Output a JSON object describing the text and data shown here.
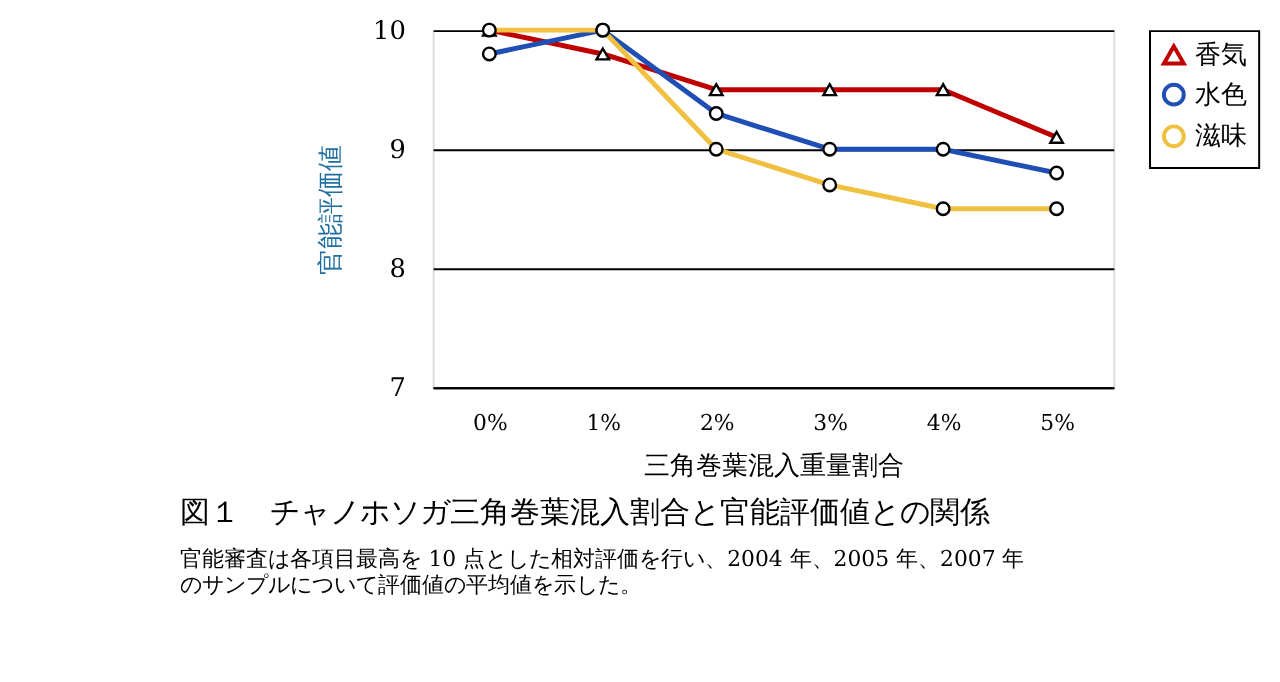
{
  "chart_data": {
    "type": "line",
    "title": "図１　チャノホソガ三角巻葉混入割合と官能評価値との関係",
    "annotations": [
      "官能審査は各項目最高を 10 点とした相対評価を行い、2004 年、2005 年、2007 年",
      "のサンプルについて評価値の平均値を示した。"
    ],
    "xlabel": "三角巻葉混入重量割合",
    "ylabel": "官能評価値",
    "categories": [
      "0%",
      "1%",
      "2%",
      "3%",
      "4%",
      "5%"
    ],
    "series": [
      {
        "name": "香気",
        "color": "#c00000",
        "marker": "triangle",
        "values": [
          10,
          9.8,
          9.5,
          9.5,
          9.5,
          9.1
        ]
      },
      {
        "name": "水色",
        "color": "#1f4fb4",
        "marker": "circle",
        "values": [
          9.8,
          10,
          9.3,
          9.0,
          9.0,
          8.8
        ]
      },
      {
        "name": "滋味",
        "color": "#f0c040",
        "marker": "circle",
        "values": [
          10,
          10,
          9.0,
          8.7,
          8.5,
          8.5
        ]
      }
    ],
    "ylim": [
      7,
      10
    ],
    "yticks": [
      7,
      8,
      9,
      10
    ],
    "grid": "y",
    "legend": "right",
    "line_style": "solid"
  }
}
